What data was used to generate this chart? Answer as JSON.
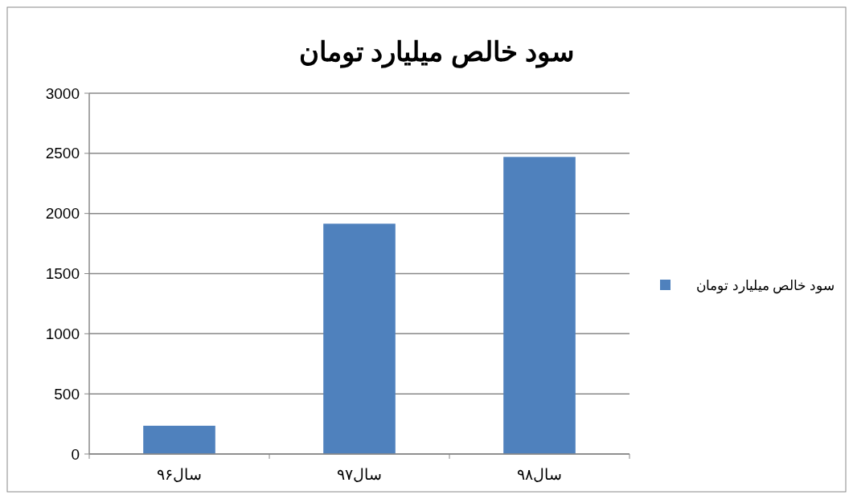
{
  "chart_data": {
    "type": "bar",
    "title": "سود خالص میلیارد تومان",
    "categories": [
      "سال۹۶",
      "سال۹۷",
      "سال۹۸"
    ],
    "series": [
      {
        "name": "سود خالص میلیارد تومان",
        "color": "#4f81bd",
        "values": [
          235,
          1915,
          2470
        ]
      }
    ],
    "ylim": [
      0,
      3000
    ],
    "yticks": [
      0,
      500,
      1000,
      1500,
      2000,
      2500,
      3000
    ],
    "grid": "y",
    "legend": "right"
  }
}
